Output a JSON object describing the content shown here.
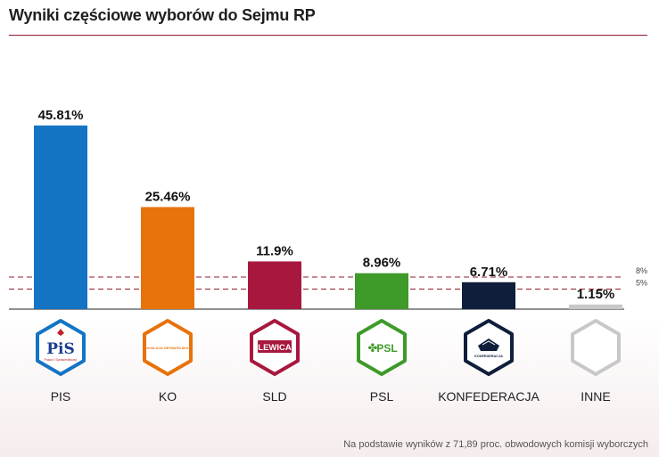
{
  "title": "Wyniki częściowe wyborów do Sejmu RP",
  "footnote": "Na podstawie wyników z 71,89 proc. obwodowych komisji wyborczych",
  "chart_data": {
    "type": "bar",
    "title": "Wyniki częściowe wyborów do Sejmu RP",
    "xlabel": "",
    "ylabel": "",
    "unit": "%",
    "ylim": [
      0,
      50
    ],
    "grid": false,
    "categories": [
      "PIS",
      "KO",
      "SLD",
      "PSL",
      "KONFEDERACJA",
      "INNE"
    ],
    "values": [
      45.81,
      25.46,
      11.9,
      8.96,
      6.71,
      1.15
    ],
    "value_labels": [
      "45.81%",
      "25.46%",
      "11.9%",
      "8.96%",
      "6.71%",
      "1.15%"
    ],
    "bar_colors": [
      "#1474c4",
      "#e8720c",
      "#a8183e",
      "#3e9a29",
      "#0f1f3b",
      "#c8c8c8"
    ],
    "thresholds": [
      {
        "value": 8,
        "label": "8%"
      },
      {
        "value": 5,
        "label": "5%"
      }
    ],
    "threshold_color": "#8b1f2c",
    "logos": [
      {
        "name": "pis-logo",
        "text": "PiS",
        "subtext": "Prawo i Sprawiedliwość",
        "color": "#1474c4"
      },
      {
        "name": "ko-logo",
        "text": "KOALICJA OBYWATELSKA",
        "color": "#e8720c"
      },
      {
        "name": "sld-logo",
        "text": "LEWICA",
        "color": "#a8183e"
      },
      {
        "name": "psl-logo",
        "text": "PSL",
        "color": "#3e9a29"
      },
      {
        "name": "konfederacja-logo",
        "text": "KONFEDERACJA",
        "color": "#0f1f3b"
      },
      {
        "name": "inne-logo",
        "text": "",
        "color": "#c8c8c8"
      }
    ]
  }
}
